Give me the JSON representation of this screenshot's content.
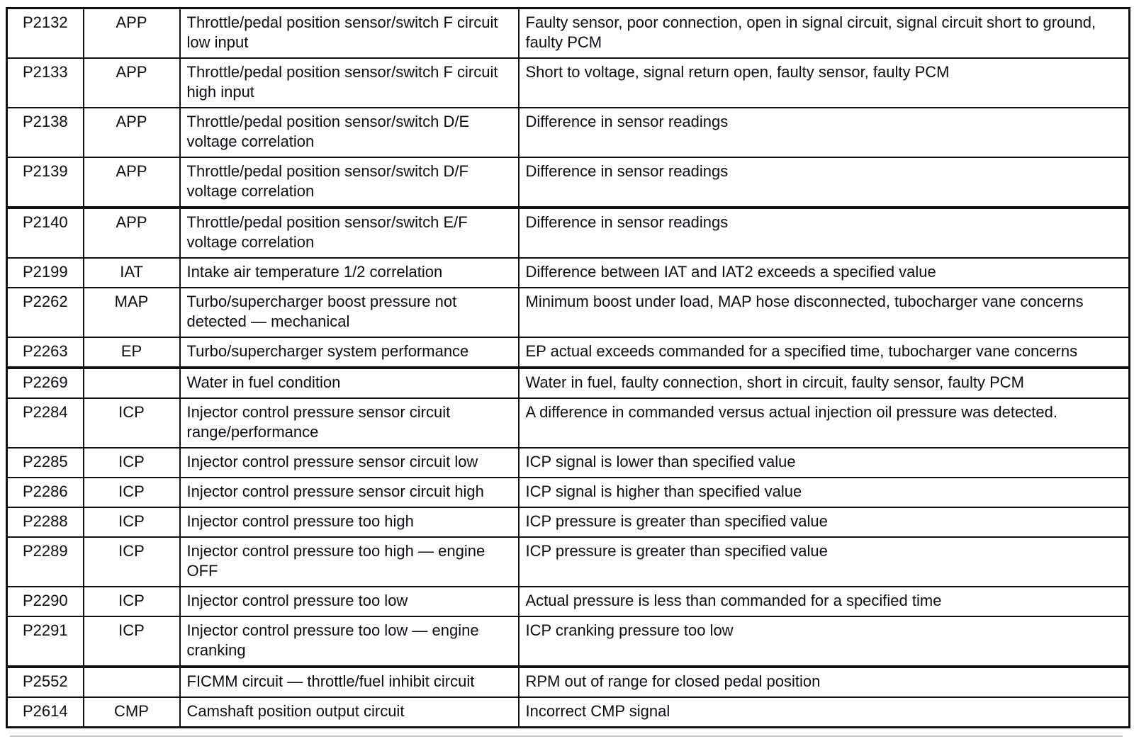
{
  "table": {
    "columns": [
      "code",
      "system",
      "description",
      "causes"
    ],
    "rows": [
      {
        "code": "P2132",
        "system": "APP",
        "description": "Throttle/pedal position sensor/switch F circuit low input",
        "causes": "Faulty sensor, poor connection, open in signal circuit, signal circuit short to ground, faulty PCM",
        "thick_top": false
      },
      {
        "code": "P2133",
        "system": "APP",
        "description": "Throttle/pedal position sensor/switch F circuit high input",
        "causes": "Short to voltage, signal return open, faulty sensor, faulty PCM",
        "thick_top": false
      },
      {
        "code": "P2138",
        "system": "APP",
        "description": "Throttle/pedal position sensor/switch D/E voltage correlation",
        "causes": "Difference in sensor readings",
        "thick_top": false
      },
      {
        "code": "P2139",
        "system": "APP",
        "description": "Throttle/pedal position sensor/switch D/F voltage correlation",
        "causes": "Difference in sensor readings",
        "thick_top": false
      },
      {
        "code": "P2140",
        "system": "APP",
        "description": "Throttle/pedal position sensor/switch E/F voltage correlation",
        "causes": "Difference in sensor readings",
        "thick_top": true
      },
      {
        "code": "P2199",
        "system": "IAT",
        "description": "Intake air temperature 1/2 correlation",
        "causes": "Difference between IAT and IAT2 exceeds a specified value",
        "thick_top": false
      },
      {
        "code": "P2262",
        "system": "MAP",
        "description": "Turbo/supercharger boost pressure not detected — mechanical",
        "causes": "Minimum boost under load, MAP hose disconnected, tubocharger vane concerns",
        "thick_top": false
      },
      {
        "code": "P2263",
        "system": "EP",
        "description": "Turbo/supercharger system performance",
        "causes": "EP actual exceeds commanded for a specified time, tubocharger vane concerns",
        "thick_top": false
      },
      {
        "code": "P2269",
        "system": "",
        "description": "Water in fuel condition",
        "causes": "Water in fuel, faulty connection, short in circuit, faulty sensor, faulty PCM",
        "thick_top": true
      },
      {
        "code": "P2284",
        "system": "ICP",
        "description": "Injector control pressure sensor circuit range/performance",
        "causes": "A difference in commanded versus actual injection oil pressure was detected.",
        "thick_top": false
      },
      {
        "code": "P2285",
        "system": "ICP",
        "description": "Injector control pressure sensor circuit low",
        "causes": "ICP signal is lower than specified value",
        "thick_top": false
      },
      {
        "code": "P2286",
        "system": "ICP",
        "description": "Injector control pressure sensor circuit high",
        "causes": "ICP signal is higher than specified value",
        "thick_top": false
      },
      {
        "code": "P2288",
        "system": "ICP",
        "description": "Injector control pressure too high",
        "causes": "ICP pressure is greater than specified value",
        "thick_top": false
      },
      {
        "code": "P2289",
        "system": "ICP",
        "description": "Injector control pressure too high — engine OFF",
        "causes": "ICP pressure is greater than specified value",
        "thick_top": false
      },
      {
        "code": "P2290",
        "system": "ICP",
        "description": "Injector control pressure too low",
        "causes": "Actual pressure is less than commanded for a specified time",
        "thick_top": false
      },
      {
        "code": "P2291",
        "system": "ICP",
        "description": "Injector control pressure too low — engine cranking",
        "causes": "ICP cranking pressure too low",
        "thick_top": false
      },
      {
        "code": "P2552",
        "system": "",
        "description": "FICMM circuit — throttle/fuel inhibit circuit",
        "causes": "RPM out of range for closed pedal position",
        "thick_top": true
      },
      {
        "code": "P2614",
        "system": "CMP",
        "description": "Camshaft position output circuit",
        "causes": "Incorrect CMP signal",
        "thick_top": false
      }
    ]
  }
}
